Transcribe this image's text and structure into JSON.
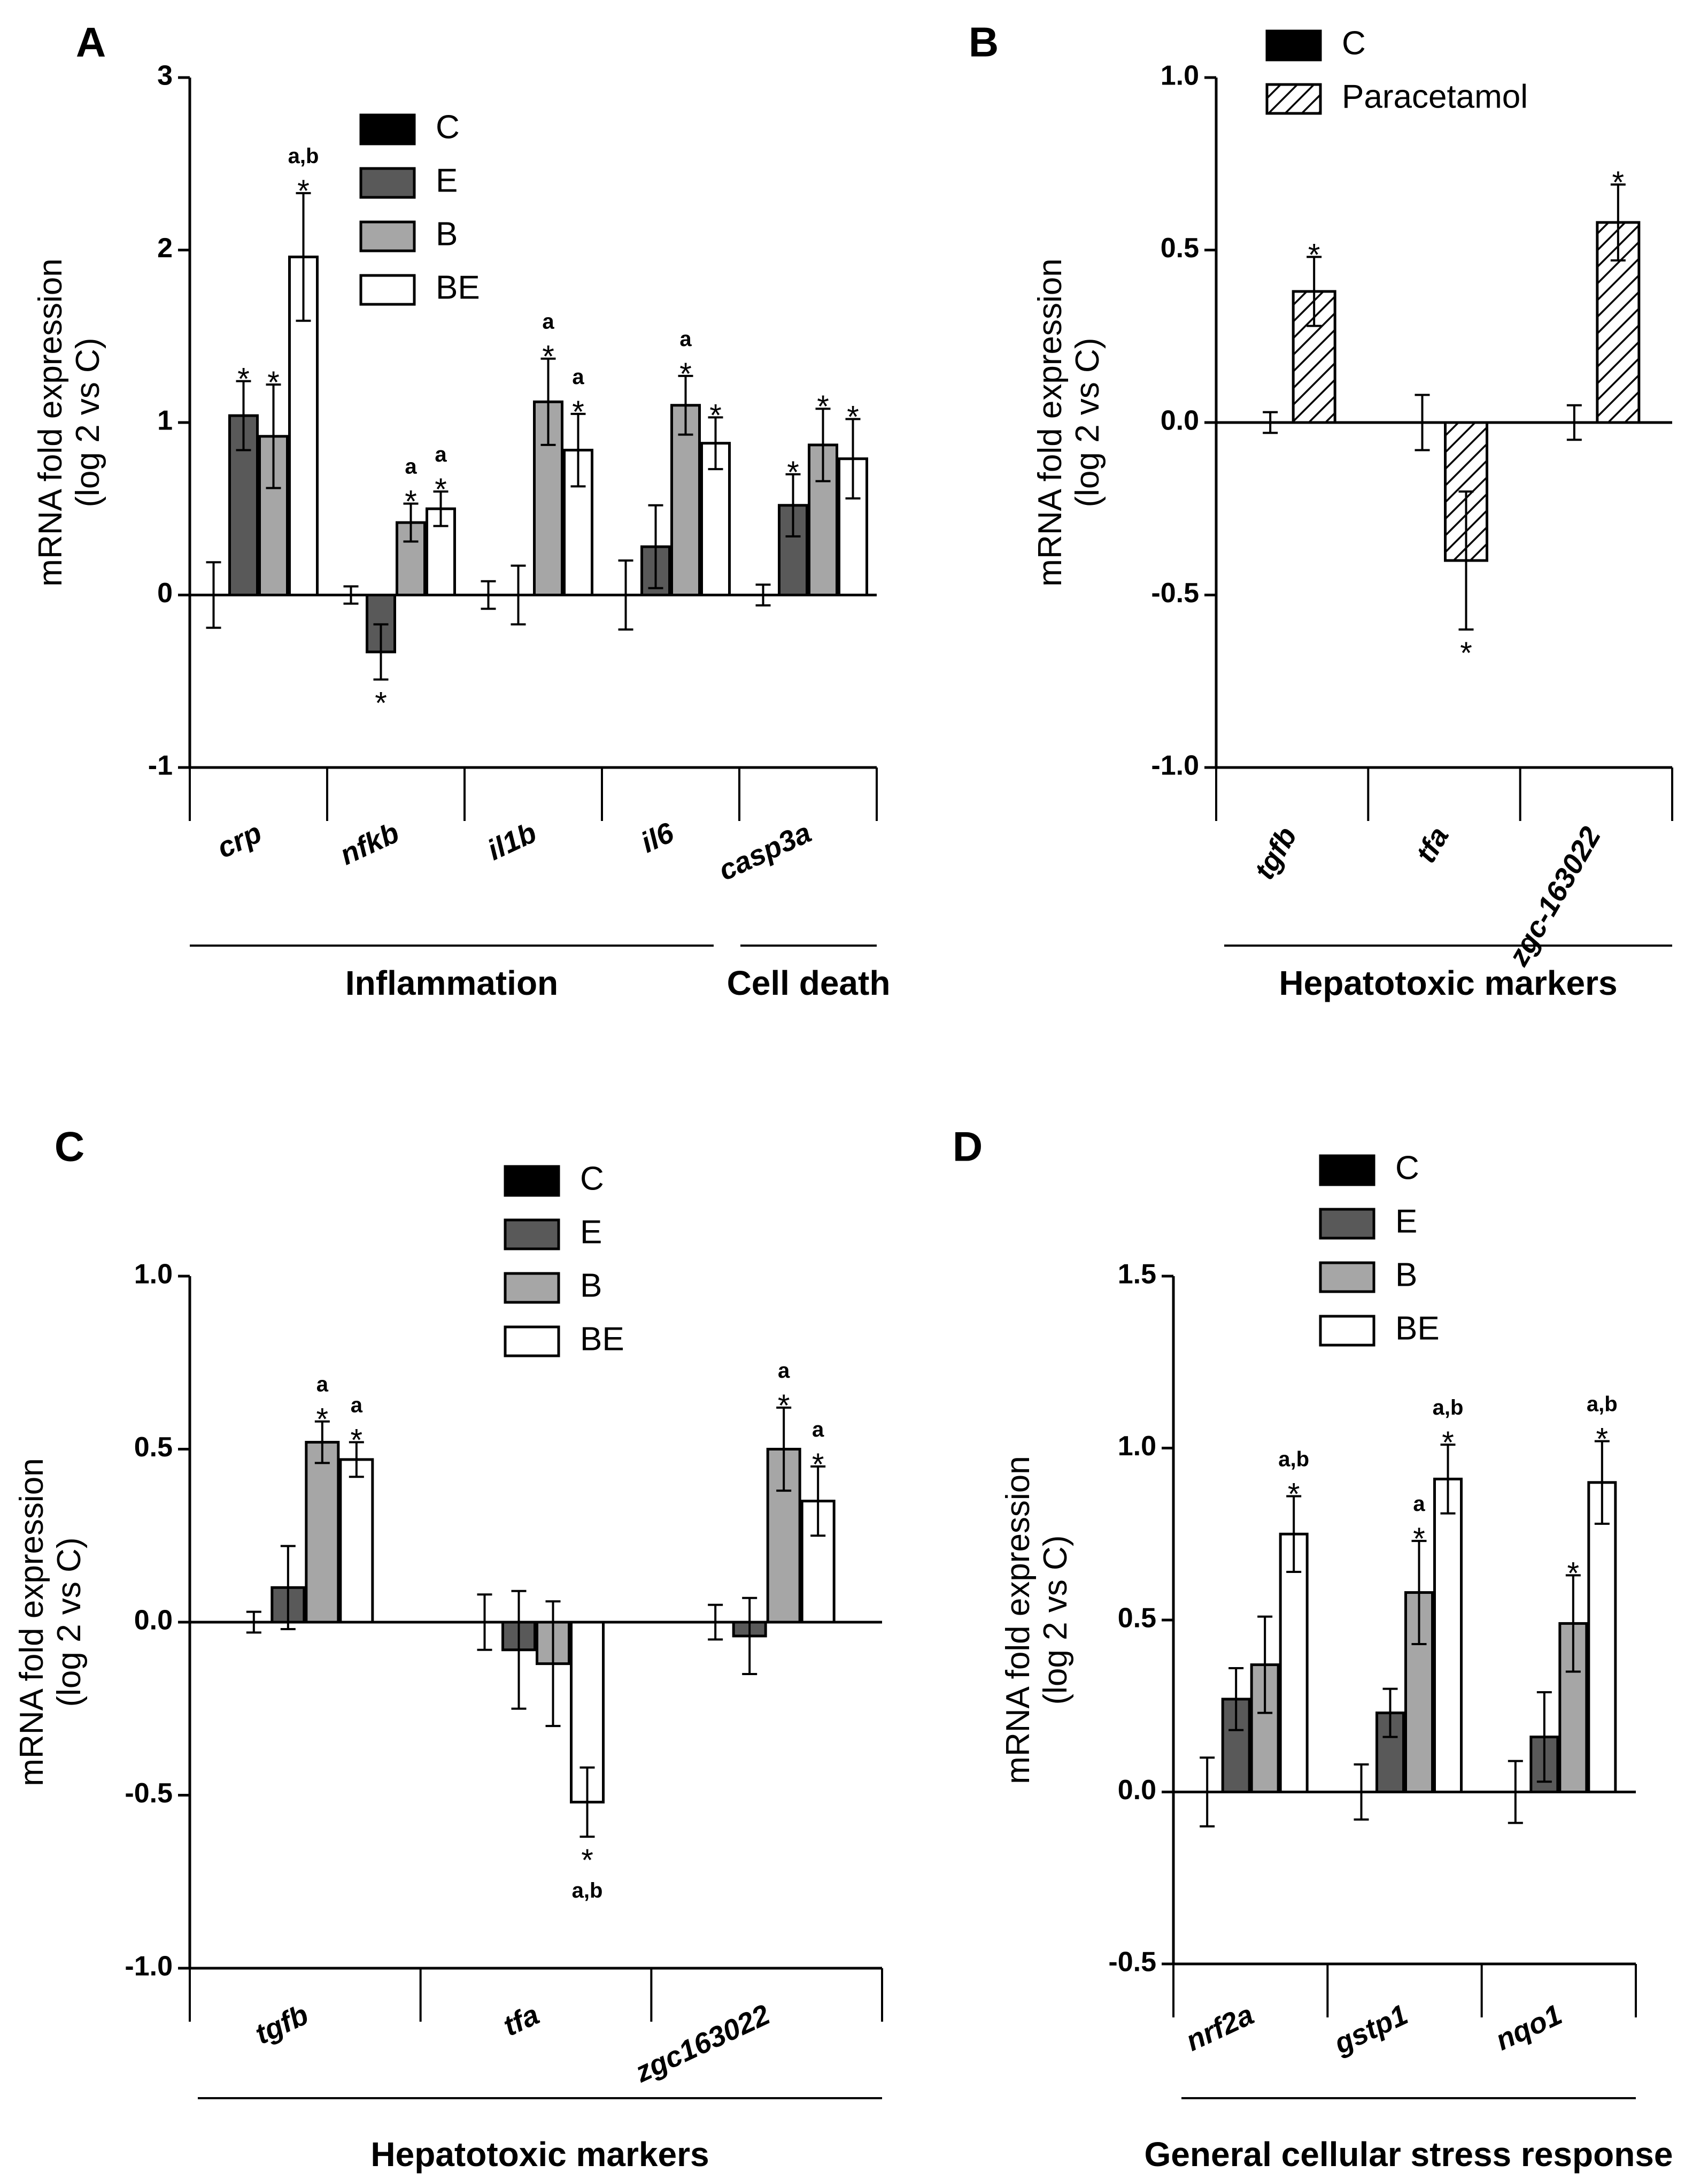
{
  "colors": {
    "C": "#000000",
    "E": "#595959",
    "B": "#a6a6a6",
    "BE": "#ffffff",
    "Paracetamol": "hatch"
  },
  "chart_data": [
    {
      "panel": "A",
      "type": "bar",
      "ylabel_line1": "mRNA fold expression",
      "ylabel_line2": "(log 2 vs C)",
      "ylim": [
        -1,
        3
      ],
      "yticks": [
        "-1",
        "0",
        "1",
        "2",
        "3"
      ],
      "legend": [
        "C",
        "E",
        "B",
        "BE"
      ],
      "categories": [
        "crp",
        "nfkb",
        "il1b",
        "il6",
        "casp3a"
      ],
      "series": [
        {
          "name": "C",
          "values": [
            0,
            0,
            0,
            0,
            0
          ],
          "errors": [
            0.19,
            0.05,
            0.08,
            0.2,
            0.06
          ],
          "stars": [
            false,
            false,
            false,
            false,
            false
          ],
          "letters": [
            "",
            "",
            "",
            "",
            ""
          ]
        },
        {
          "name": "E",
          "values": [
            1.04,
            -0.33,
            0,
            0.28,
            0.52
          ],
          "errors": [
            0.2,
            0.16,
            0.17,
            0.24,
            0.18
          ],
          "stars": [
            true,
            true,
            false,
            false,
            true
          ],
          "letters": [
            "",
            "",
            "",
            "",
            ""
          ]
        },
        {
          "name": "B",
          "values": [
            0.92,
            0.42,
            1.12,
            1.1,
            0.87
          ],
          "errors": [
            0.3,
            0.11,
            0.25,
            0.17,
            0.21
          ],
          "stars": [
            true,
            true,
            true,
            true,
            true
          ],
          "letters": [
            "",
            "a",
            "a",
            "a",
            ""
          ]
        },
        {
          "name": "BE",
          "values": [
            1.96,
            0.5,
            0.84,
            0.88,
            0.79
          ],
          "errors": [
            0.37,
            0.1,
            0.21,
            0.15,
            0.23
          ],
          "stars": [
            true,
            true,
            true,
            true,
            true
          ],
          "letters": [
            "a,b",
            "a",
            "a",
            "",
            ""
          ]
        }
      ],
      "groups": [
        {
          "label": "Inflammation",
          "from": 0,
          "to": 3
        },
        {
          "label": "Cell death",
          "from": 4,
          "to": 4
        }
      ]
    },
    {
      "panel": "B",
      "type": "bar",
      "ylabel_line1": "mRNA fold expression",
      "ylabel_line2": "(log 2 vs C)",
      "ylim": [
        -1,
        1
      ],
      "yticks": [
        "-1.0",
        "-0.5",
        "0.0",
        "0.5",
        "1.0"
      ],
      "legend": [
        "C",
        "Paracetamol"
      ],
      "categories": [
        "tgfb",
        "tfa",
        "zgc-163022"
      ],
      "series": [
        {
          "name": "C",
          "values": [
            0,
            0,
            0
          ],
          "errors": [
            0.03,
            0.08,
            0.05
          ],
          "stars": [
            false,
            false,
            false
          ],
          "letters": [
            "",
            "",
            ""
          ]
        },
        {
          "name": "Paracetamol",
          "values": [
            0.38,
            -0.4,
            0.58
          ],
          "errors": [
            0.1,
            0.2,
            0.11
          ],
          "stars": [
            true,
            true,
            true
          ],
          "letters": [
            "",
            "",
            ""
          ]
        }
      ],
      "groups": [
        {
          "label": "Hepatotoxic markers",
          "from": 0,
          "to": 2
        }
      ]
    },
    {
      "panel": "C",
      "type": "bar",
      "ylabel_line1": "mRNA fold expression",
      "ylabel_line2": "(log 2 vs C)",
      "ylim": [
        -1,
        1
      ],
      "yticks": [
        "-1.0",
        "-0.5",
        "0.0",
        "0.5",
        "1.0"
      ],
      "legend": [
        "C",
        "E",
        "B",
        "BE"
      ],
      "categories": [
        "tgfb",
        "tfa",
        "zgc163022"
      ],
      "series": [
        {
          "name": "C",
          "values": [
            0,
            0,
            0
          ],
          "errors": [
            0.03,
            0.08,
            0.05
          ],
          "stars": [
            false,
            false,
            false
          ],
          "letters": [
            "",
            "",
            ""
          ]
        },
        {
          "name": "E",
          "values": [
            0.1,
            -0.08,
            -0.04
          ],
          "errors": [
            0.12,
            0.17,
            0.11
          ],
          "stars": [
            false,
            false,
            false
          ],
          "letters": [
            "",
            "",
            ""
          ]
        },
        {
          "name": "B",
          "values": [
            0.52,
            -0.12,
            0.5
          ],
          "errors": [
            0.06,
            0.18,
            0.12
          ],
          "stars": [
            true,
            false,
            true
          ],
          "letters": [
            "a",
            "",
            "a"
          ]
        },
        {
          "name": "BE",
          "values": [
            0.47,
            -0.52,
            0.35
          ],
          "errors": [
            0.05,
            0.1,
            0.1
          ],
          "stars": [
            true,
            true,
            true
          ],
          "letters": [
            "a",
            "a,b",
            "a"
          ]
        }
      ],
      "groups": [
        {
          "label": "Hepatotoxic markers",
          "from": 0,
          "to": 2
        }
      ]
    },
    {
      "panel": "D",
      "type": "bar",
      "ylabel_line1": "mRNA fold expression",
      "ylabel_line2": "(log 2 vs C)",
      "ylim": [
        -0.5,
        1.5
      ],
      "yticks": [
        "-0.5",
        "0.0",
        "0.5",
        "1.0",
        "1.5"
      ],
      "legend": [
        "C",
        "E",
        "B",
        "BE"
      ],
      "categories": [
        "nrf2a",
        "gstp1",
        "nqo1"
      ],
      "series": [
        {
          "name": "C",
          "values": [
            0,
            0,
            0
          ],
          "errors": [
            0.1,
            0.08,
            0.09
          ],
          "stars": [
            false,
            false,
            false
          ],
          "letters": [
            "",
            "",
            ""
          ]
        },
        {
          "name": "E",
          "values": [
            0.27,
            0.23,
            0.16
          ],
          "errors": [
            0.09,
            0.07,
            0.13
          ],
          "stars": [
            false,
            false,
            false
          ],
          "letters": [
            "",
            "",
            ""
          ]
        },
        {
          "name": "B",
          "values": [
            0.37,
            0.58,
            0.49
          ],
          "errors": [
            0.14,
            0.15,
            0.14
          ],
          "stars": [
            false,
            true,
            true
          ],
          "letters": [
            "",
            "a",
            ""
          ]
        },
        {
          "name": "BE",
          "values": [
            0.75,
            0.91,
            0.9
          ],
          "errors": [
            0.11,
            0.1,
            0.12
          ],
          "stars": [
            true,
            true,
            true
          ],
          "letters": [
            "a,b",
            "a,b",
            "a,b"
          ]
        }
      ],
      "groups": [
        {
          "label": "General cellular stress response",
          "from": 0,
          "to": 2
        }
      ]
    }
  ]
}
